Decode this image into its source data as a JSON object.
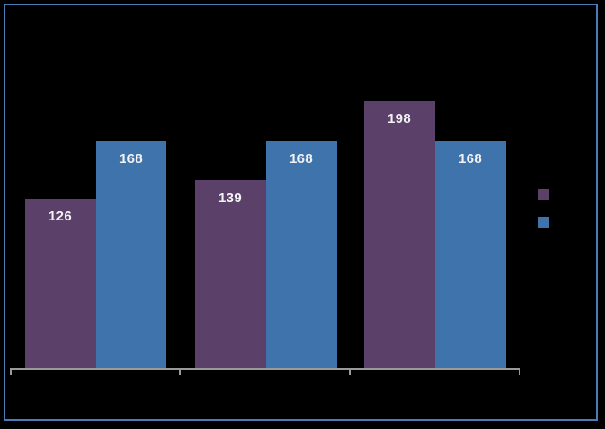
{
  "canvas": {
    "background_color": "#000000",
    "frame_border_color": "#4A7CB8"
  },
  "chart_data": {
    "type": "bar",
    "title": "",
    "xlabel": "",
    "ylabel": "",
    "categories": [
      "",
      "",
      ""
    ],
    "series": [
      {
        "name": "",
        "color": "#5B4069",
        "values": [
          126,
          139,
          198
        ]
      },
      {
        "name": "",
        "color": "#3E73AC",
        "values": [
          168,
          168,
          168
        ]
      }
    ],
    "ylim": [
      0,
      250
    ],
    "grid": false,
    "legend_position": "right",
    "data_labels": {
      "position": "inside-end",
      "color": "#F2F2F2"
    },
    "axis_line_color": "#9A9A9A"
  },
  "legend": {
    "entries": [
      {
        "swatch_color": "#5B4069"
      },
      {
        "swatch_color": "#3E73AC"
      }
    ]
  }
}
